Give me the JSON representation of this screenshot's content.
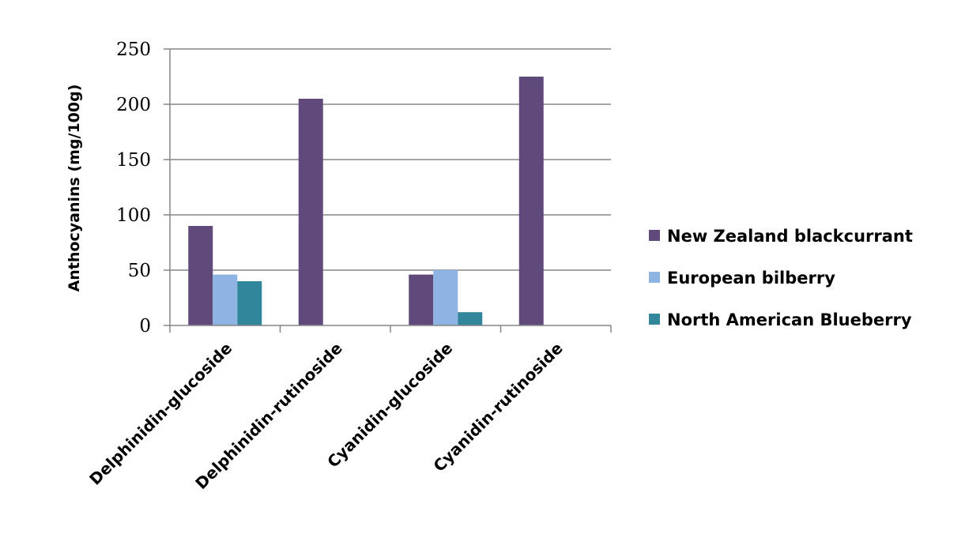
{
  "chart_data": {
    "type": "bar",
    "title": "",
    "xlabel": "",
    "ylabel": "Anthocyanins (mg/100g)",
    "ylim": [
      0,
      250
    ],
    "yticks": [
      0,
      50,
      100,
      150,
      200,
      250
    ],
    "grid": true,
    "legend_position": "right",
    "categories": [
      "Delphinidin-glucoside",
      "Delphinidin-rutinoside",
      "Cyanidin-glucoside",
      "Cyanidin-rutinoside"
    ],
    "series": [
      {
        "name": "New Zealand blackcurrant",
        "color": "#604a7b",
        "values": [
          90,
          205,
          46,
          225
        ]
      },
      {
        "name": "European bilberry",
        "color": "#8db4e2",
        "values": [
          46,
          0,
          50,
          0
        ]
      },
      {
        "name": "North American Blueberry",
        "color": "#31869b",
        "values": [
          40,
          0,
          12,
          0
        ]
      }
    ]
  }
}
